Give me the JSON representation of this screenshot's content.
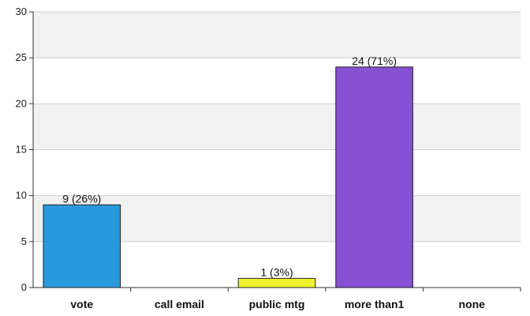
{
  "chart_data": {
    "type": "bar",
    "categories": [
      "vote",
      "call email",
      "public mtg",
      "more than1",
      "none"
    ],
    "values": [
      9,
      0,
      1,
      24,
      0
    ],
    "data_labels": [
      "9 (26%)",
      "",
      "1 (3%)",
      "24 (71%)",
      ""
    ],
    "bar_colors": [
      "#2899dd",
      "#ffffff",
      "#eef22c",
      "#8850d4",
      "#ffffff"
    ],
    "ylim": [
      0,
      30
    ],
    "yticks": [
      0,
      5,
      10,
      15,
      20,
      25,
      30
    ],
    "grid": true,
    "band_colors": [
      "#f1f1f1",
      "#ffffff"
    ],
    "title": "",
    "xlabel": "",
    "ylabel": ""
  }
}
